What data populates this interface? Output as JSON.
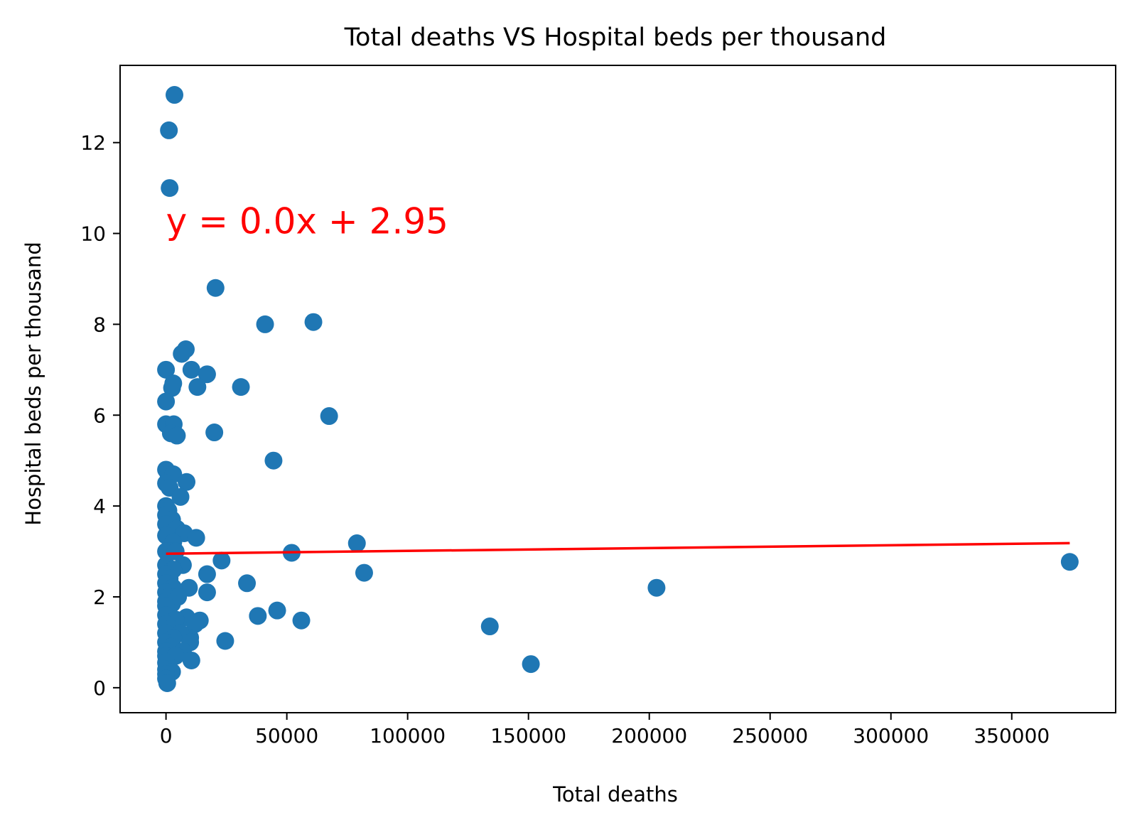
{
  "chart_data": {
    "type": "scatter",
    "title": "Total deaths VS Hospital beds per thousand",
    "xlabel": "Total deaths",
    "ylabel": "Hospital beds per thousand",
    "xlim": [
      -19000,
      393000
    ],
    "ylim": [
      -0.55,
      13.7
    ],
    "xticks": [
      0,
      50000,
      100000,
      150000,
      200000,
      250000,
      300000,
      350000
    ],
    "xtick_labels": [
      "0",
      "50000",
      "100000",
      "150000",
      "200000",
      "250000",
      "300000",
      "350000"
    ],
    "yticks": [
      0,
      2,
      4,
      6,
      8,
      10,
      12
    ],
    "ytick_labels": [
      "0",
      "2",
      "4",
      "6",
      "8",
      "10",
      "12"
    ],
    "grid": false,
    "point_color": "#1f77b4",
    "line_color": "#ff0000",
    "annotation": {
      "text": "y = 0.0x + 2.95",
      "x": 0,
      "y": 10,
      "color": "#ff0000"
    },
    "regression": {
      "slope": 6.2e-07,
      "intercept": 2.95,
      "x_range": [
        0,
        374000
      ]
    },
    "points": [
      [
        3500,
        13.05
      ],
      [
        1200,
        12.27
      ],
      [
        1500,
        11.0
      ],
      [
        20500,
        8.8
      ],
      [
        41000,
        8.0
      ],
      [
        61000,
        8.05
      ],
      [
        8200,
        7.45
      ],
      [
        6500,
        7.35
      ],
      [
        10500,
        7.0
      ],
      [
        17000,
        6.9
      ],
      [
        0,
        7.0
      ],
      [
        3000,
        6.7
      ],
      [
        2500,
        6.6
      ],
      [
        13000,
        6.62
      ],
      [
        31000,
        6.62
      ],
      [
        0,
        6.3
      ],
      [
        67500,
        5.98
      ],
      [
        0,
        5.8
      ],
      [
        3200,
        5.8
      ],
      [
        2000,
        5.6
      ],
      [
        4500,
        5.55
      ],
      [
        20000,
        5.62
      ],
      [
        44500,
        5.0
      ],
      [
        0,
        4.8
      ],
      [
        1000,
        4.7
      ],
      [
        3000,
        4.7
      ],
      [
        8500,
        4.53
      ],
      [
        0,
        4.5
      ],
      [
        1500,
        4.4
      ],
      [
        6000,
        4.2
      ],
      [
        0,
        4.0
      ],
      [
        1000,
        3.9
      ],
      [
        0,
        3.8
      ],
      [
        2500,
        3.7
      ],
      [
        0,
        3.6
      ],
      [
        4500,
        3.5
      ],
      [
        7500,
        3.4
      ],
      [
        12500,
        3.3
      ],
      [
        0,
        3.35
      ],
      [
        3000,
        3.2
      ],
      [
        79000,
        3.18
      ],
      [
        52000,
        2.97
      ],
      [
        0,
        3.0
      ],
      [
        2000,
        3.0
      ],
      [
        4000,
        3.0
      ],
      [
        23000,
        2.8
      ],
      [
        0,
        2.7
      ],
      [
        7000,
        2.7
      ],
      [
        3000,
        2.6
      ],
      [
        82000,
        2.53
      ],
      [
        17000,
        2.5
      ],
      [
        0,
        2.5
      ],
      [
        1500,
        2.4
      ],
      [
        33500,
        2.3
      ],
      [
        0,
        2.3
      ],
      [
        9500,
        2.2
      ],
      [
        203000,
        2.2
      ],
      [
        3000,
        2.2
      ],
      [
        0,
        2.1
      ],
      [
        17000,
        2.1
      ],
      [
        1000,
        2.0
      ],
      [
        5000,
        2.0
      ],
      [
        0,
        1.9
      ],
      [
        2500,
        1.85
      ],
      [
        0,
        1.8
      ],
      [
        46000,
        1.7
      ],
      [
        38000,
        1.58
      ],
      [
        8500,
        1.55
      ],
      [
        0,
        1.6
      ],
      [
        4000,
        1.5
      ],
      [
        14000,
        1.48
      ],
      [
        56000,
        1.48
      ],
      [
        12000,
        1.4
      ],
      [
        0,
        1.4
      ],
      [
        2000,
        1.3
      ],
      [
        134000,
        1.35
      ],
      [
        0,
        1.2
      ],
      [
        10000,
        1.1
      ],
      [
        6000,
        1.2
      ],
      [
        3000,
        1.1
      ],
      [
        24500,
        1.03
      ],
      [
        0,
        1.0
      ],
      [
        10000,
        1.0
      ],
      [
        2000,
        0.9
      ],
      [
        0,
        0.8
      ],
      [
        7000,
        0.8
      ],
      [
        0,
        0.7
      ],
      [
        4000,
        0.7
      ],
      [
        10500,
        0.6
      ],
      [
        0,
        0.55
      ],
      [
        151000,
        0.52
      ],
      [
        0,
        0.4
      ],
      [
        2500,
        0.35
      ],
      [
        0,
        0.3
      ],
      [
        0,
        0.2
      ],
      [
        500,
        0.1
      ],
      [
        374000,
        2.77
      ]
    ]
  }
}
